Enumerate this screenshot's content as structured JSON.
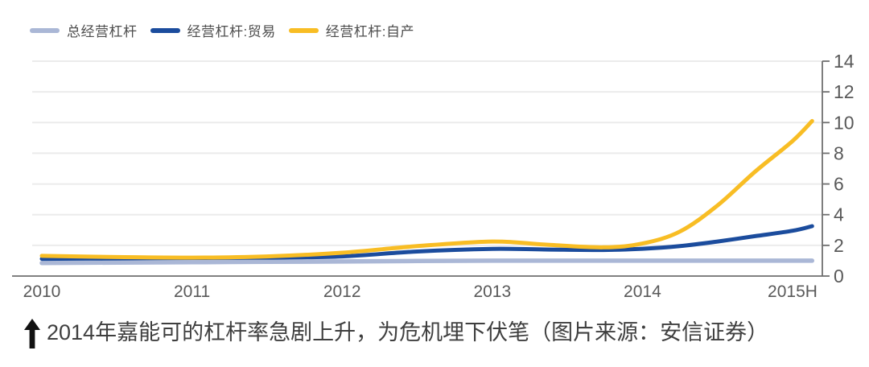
{
  "chart_data": {
    "type": "line",
    "title": "",
    "x_tick_labels": [
      "2010",
      "2011",
      "2012",
      "2013",
      "2014",
      "2015H"
    ],
    "x_units": [
      0,
      0.5,
      1,
      1.5,
      2,
      2.5,
      3,
      3.35,
      3.74,
      4,
      4.25,
      4.5,
      4.75,
      5,
      5.13
    ],
    "ylim": [
      0,
      14
    ],
    "yticks": [
      0,
      2,
      4,
      6,
      8,
      10,
      12,
      14
    ],
    "grid": true,
    "legend_position": "top-left",
    "y_axis_side": "right",
    "series": [
      {
        "name": "总经营杠杆",
        "color": "#aab7d6",
        "values": [
          0.85,
          0.88,
          0.9,
          0.93,
          0.95,
          0.98,
          1.0,
          1.0,
          1.0,
          1.0,
          1.0,
          1.0,
          1.0,
          1.0,
          1.0
        ]
      },
      {
        "name": "经营杠杆:贸易",
        "color": "#1b4c9d",
        "values": [
          1.12,
          1.15,
          1.18,
          1.2,
          1.28,
          1.6,
          1.77,
          1.73,
          1.7,
          1.78,
          1.95,
          2.25,
          2.6,
          2.95,
          3.25
        ]
      },
      {
        "name": "经营杠杆:自产",
        "color": "#f8bd24",
        "values": [
          1.32,
          1.24,
          1.2,
          1.28,
          1.52,
          1.95,
          2.25,
          2.05,
          1.87,
          2.12,
          2.9,
          4.6,
          6.8,
          8.8,
          10.1
        ]
      }
    ],
    "colors": {
      "grid": "#ebebeb",
      "axis": "#6f6f6f",
      "tick_label": "#595959"
    }
  },
  "caption": {
    "text": "2014年嘉能可的杠杆率急剧上升，为危机埋下伏笔（图片来源：安信证券）"
  }
}
